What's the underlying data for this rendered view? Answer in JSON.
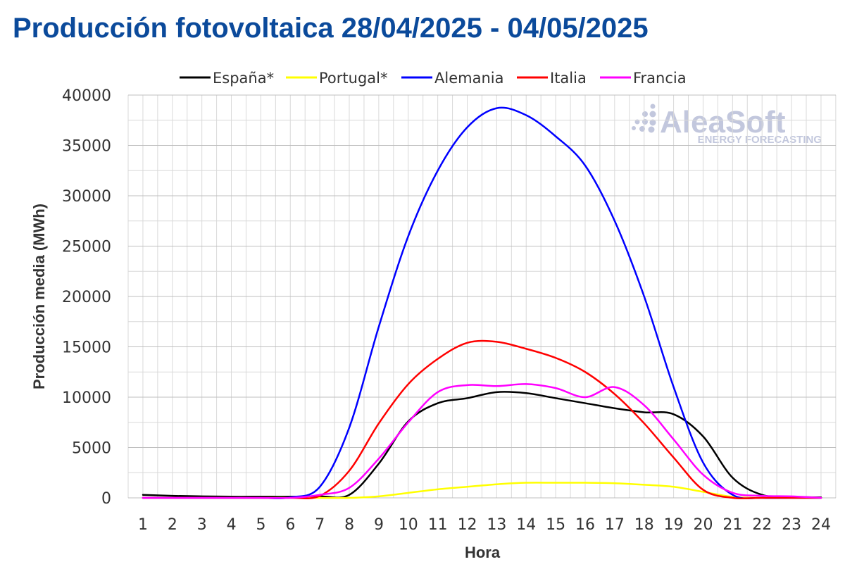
{
  "chart_data": {
    "type": "line",
    "title": "Producción fotovoltaica 28/04/2025 - 04/05/2025",
    "xlabel": "Hora",
    "ylabel": "Producción media (MWh)",
    "ylim": [
      0,
      40000
    ],
    "yticks": [
      0,
      5000,
      10000,
      15000,
      20000,
      25000,
      30000,
      35000,
      40000
    ],
    "xlim": [
      1,
      24
    ],
    "categories": [
      "1",
      "2",
      "3",
      "4",
      "5",
      "6",
      "7",
      "8",
      "9",
      "10",
      "11",
      "12",
      "13",
      "14",
      "15",
      "16",
      "17",
      "18",
      "19",
      "20",
      "21",
      "22",
      "23",
      "24"
    ],
    "grid": true,
    "legend_position": "top",
    "watermark": {
      "brand": "AleaSoft",
      "tagline": "ENERGY FORECASTING"
    },
    "series": [
      {
        "name": "España*",
        "color": "#000000",
        "values": [
          300,
          200,
          150,
          120,
          120,
          120,
          150,
          300,
          3400,
          7600,
          9400,
          9900,
          10500,
          10400,
          9900,
          9400,
          8900,
          8500,
          8300,
          6100,
          2000,
          300,
          100,
          50
        ]
      },
      {
        "name": "Portugal*",
        "color": "#ffff00",
        "values": [
          0,
          0,
          0,
          0,
          0,
          0,
          0,
          0,
          150,
          500,
          850,
          1100,
          1350,
          1500,
          1500,
          1500,
          1450,
          1300,
          1100,
          600,
          100,
          0,
          0,
          0
        ]
      },
      {
        "name": "Alemania",
        "color": "#0000ff",
        "values": [
          0,
          0,
          0,
          0,
          0,
          50,
          1100,
          7000,
          17000,
          26000,
          32500,
          36800,
          38700,
          38000,
          35900,
          33000,
          27500,
          20000,
          11000,
          3500,
          300,
          0,
          0,
          0
        ]
      },
      {
        "name": "Italia",
        "color": "#ff0000",
        "values": [
          0,
          0,
          0,
          0,
          0,
          0,
          200,
          2700,
          7400,
          11300,
          13800,
          15400,
          15500,
          14800,
          13900,
          12500,
          10300,
          7400,
          4000,
          800,
          0,
          0,
          0,
          0
        ]
      },
      {
        "name": "Francia",
        "color": "#ff00ff",
        "values": [
          0,
          0,
          0,
          0,
          0,
          0,
          300,
          1000,
          3900,
          7500,
          10500,
          11200,
          11100,
          11300,
          10900,
          10000,
          11000,
          9200,
          5800,
          2300,
          500,
          200,
          150,
          0
        ]
      }
    ]
  }
}
